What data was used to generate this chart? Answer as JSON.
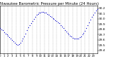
{
  "title": "Milwaukee Barometric Pressure per Minute (24 Hours)",
  "title_fontsize": 3.8,
  "bg_color": "#ffffff",
  "dot_color": "#0000cc",
  "dot_size": 0.8,
  "grid_color": "#aaaaaa",
  "xlim": [
    0,
    1440
  ],
  "ylim": [
    29.35,
    30.25
  ],
  "yticks": [
    29.4,
    29.5,
    29.6,
    29.7,
    29.8,
    29.9,
    30.0,
    30.1,
    30.2
  ],
  "ytick_fontsize": 3.2,
  "xtick_labels": [
    "0",
    "1",
    "2",
    "3",
    "4",
    "5",
    "6",
    "7",
    "8",
    "9",
    "10",
    "11",
    "12",
    "13",
    "14",
    "15",
    "16",
    "17",
    "18",
    "19",
    "20",
    "21",
    "22",
    "23"
  ],
  "xtick_fontsize": 2.8,
  "x_minutes": [
    0,
    20,
    40,
    60,
    80,
    100,
    120,
    140,
    160,
    180,
    200,
    220,
    240,
    260,
    280,
    300,
    320,
    340,
    360,
    380,
    400,
    420,
    440,
    460,
    480,
    500,
    520,
    540,
    560,
    580,
    600,
    620,
    640,
    660,
    680,
    700,
    720,
    740,
    760,
    780,
    800,
    820,
    840,
    860,
    880,
    900,
    920,
    940,
    960,
    980,
    1000,
    1020,
    1040,
    1060,
    1080,
    1100,
    1120,
    1140,
    1160,
    1180,
    1200,
    1220,
    1240,
    1260,
    1280,
    1300,
    1320,
    1340,
    1360,
    1380,
    1400,
    1420,
    1440
  ],
  "y_pressure": [
    29.82,
    29.8,
    29.78,
    29.75,
    29.72,
    29.7,
    29.68,
    29.65,
    29.62,
    29.6,
    29.57,
    29.54,
    29.52,
    29.5,
    29.52,
    29.55,
    29.58,
    29.62,
    29.67,
    29.72,
    29.78,
    29.84,
    29.88,
    29.92,
    29.96,
    30.0,
    30.04,
    30.07,
    30.09,
    30.11,
    30.12,
    30.13,
    30.13,
    30.12,
    30.11,
    30.09,
    30.07,
    30.05,
    30.03,
    30.01,
    29.99,
    29.97,
    29.95,
    29.93,
    29.91,
    29.88,
    29.85,
    29.82,
    29.79,
    29.76,
    29.73,
    29.7,
    29.68,
    29.66,
    29.64,
    29.63,
    29.62,
    29.62,
    29.63,
    29.65,
    29.67,
    29.7,
    29.73,
    29.77,
    29.82,
    29.87,
    29.93,
    29.98,
    30.03,
    30.08,
    30.12,
    30.15,
    30.18
  ]
}
